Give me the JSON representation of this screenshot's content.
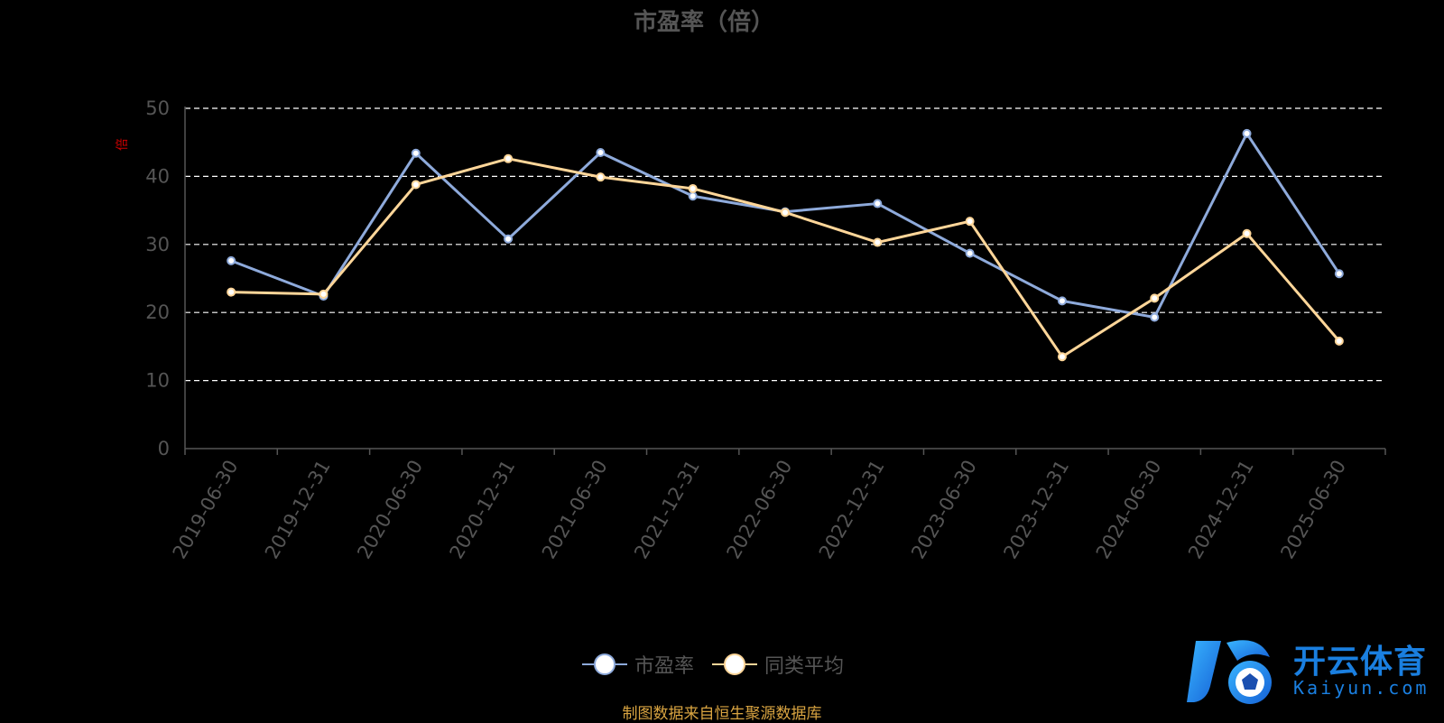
{
  "colors": {
    "series_pe": "#8eaadb",
    "series_avg": "#ffd699",
    "axis": "#555555",
    "grid": "#ffffff",
    "ylabel": "#cc0000",
    "source": "#d9a441",
    "logo_primary": "#1a8cff",
    "logo_text": "#1a7fe0"
  },
  "chart_data": {
    "type": "line",
    "title": "市盈率（倍）",
    "xlabel": "",
    "ylabel": "倍",
    "ylim": [
      0,
      50
    ],
    "yticks": [
      0,
      10,
      20,
      30,
      40,
      50
    ],
    "grid": true,
    "legend_position": "bottom-center",
    "categories": [
      "2019-06-30",
      "2019-12-31",
      "2020-06-30",
      "2020-12-31",
      "2021-06-30",
      "2021-12-31",
      "2022-06-30",
      "2022-12-31",
      "2023-06-30",
      "2023-12-31",
      "2024-06-30",
      "2024-12-31",
      "2025-06-30"
    ],
    "series": [
      {
        "name": "市盈率",
        "values": [
          27.6,
          22.4,
          43.4,
          30.8,
          43.5,
          37.1,
          34.8,
          36.0,
          28.7,
          21.7,
          19.3,
          46.3,
          25.7
        ]
      },
      {
        "name": "同类平均",
        "values": [
          23.0,
          22.7,
          38.8,
          42.6,
          39.9,
          38.2,
          34.7,
          30.3,
          33.4,
          13.5,
          22.1,
          31.6,
          15.8
        ]
      }
    ]
  },
  "source_text": "制图数据来自恒生聚源数据库",
  "logo": {
    "text": "开云体育",
    "subtext": "Kaiyun.com"
  }
}
